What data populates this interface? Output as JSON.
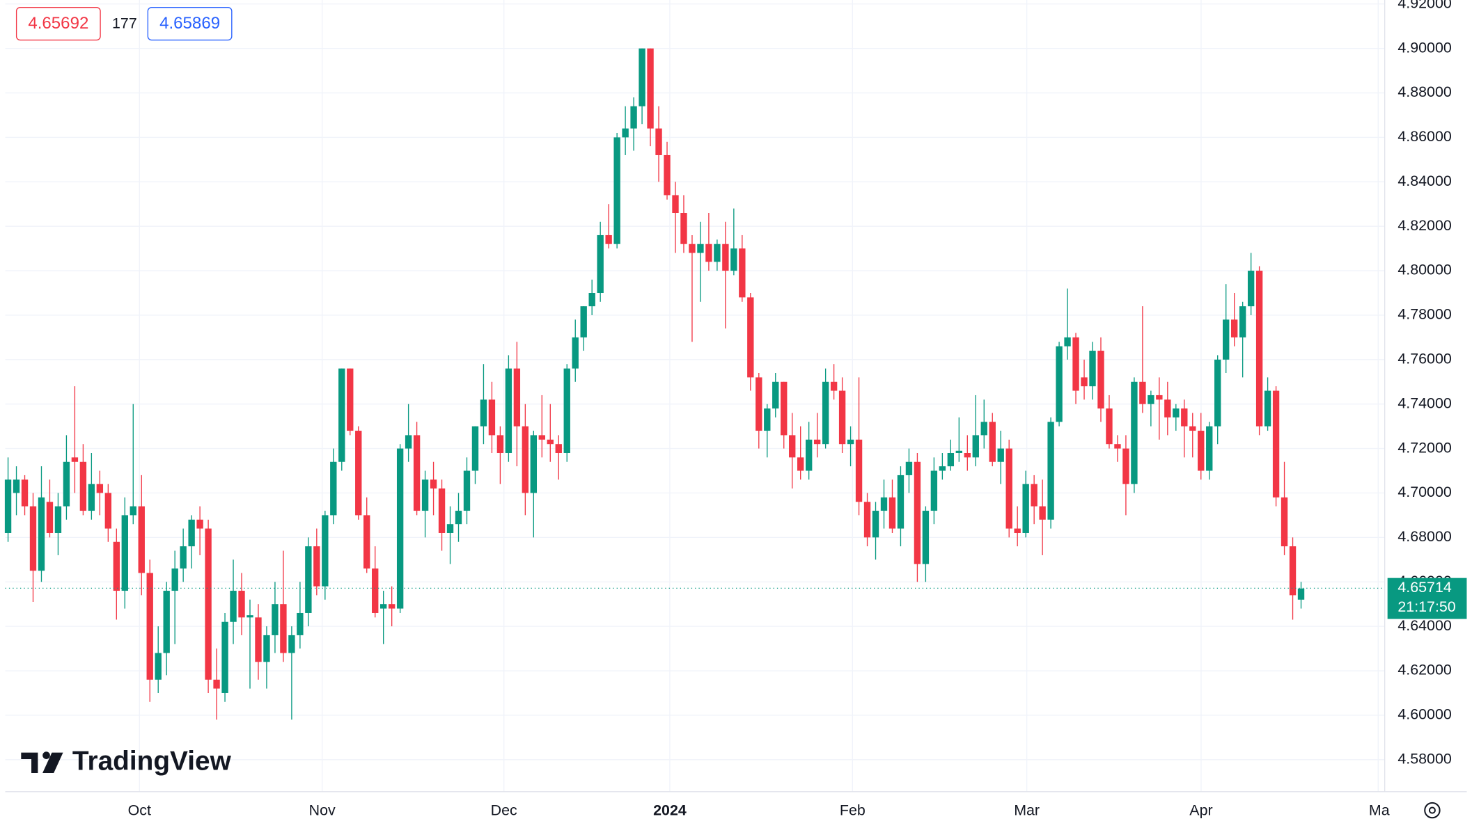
{
  "chart_data": {
    "type": "candlestick",
    "bid": "4.65692",
    "spread": "177",
    "ask": "4.65869",
    "last_price": 4.65714,
    "last_price_label": "4.65714",
    "countdown": "21:17:50",
    "watermark": "TradingView",
    "up_color": "#089981",
    "down_color": "#f23645",
    "grid": true,
    "ylim": [
      4.5656,
      4.9218
    ],
    "yticks": [
      {
        "value": 4.58,
        "label": "4.58000"
      },
      {
        "value": 4.6,
        "label": "4.60000"
      },
      {
        "value": 4.62,
        "label": "4.62000"
      },
      {
        "value": 4.64,
        "label": "4.64000"
      },
      {
        "value": 4.66,
        "label": "4.66000"
      },
      {
        "value": 4.68,
        "label": "4.68000"
      },
      {
        "value": 4.7,
        "label": "4.70000"
      },
      {
        "value": 4.72,
        "label": "4.72000"
      },
      {
        "value": 4.74,
        "label": "4.74000"
      },
      {
        "value": 4.76,
        "label": "4.76000"
      },
      {
        "value": 4.78,
        "label": "4.78000"
      },
      {
        "value": 4.8,
        "label": "4.80000"
      },
      {
        "value": 4.82,
        "label": "4.82000"
      },
      {
        "value": 4.84,
        "label": "4.84000"
      },
      {
        "value": 4.86,
        "label": "4.86000"
      },
      {
        "value": 4.88,
        "label": "4.88000"
      },
      {
        "value": 4.9,
        "label": "4.90000"
      },
      {
        "value": 4.92,
        "label": "4.92000"
      }
    ],
    "x_labels": [
      "Oct",
      "Nov",
      "Dec",
      "2024",
      "Feb",
      "Mar",
      "Apr",
      "Ma"
    ],
    "ohlc": [
      [
        4.682,
        4.716,
        4.678,
        4.706
      ],
      [
        4.7,
        4.712,
        4.69,
        4.706
      ],
      [
        4.706,
        4.708,
        4.69,
        4.694
      ],
      [
        4.694,
        4.7,
        4.651,
        4.665
      ],
      [
        4.665,
        4.712,
        4.66,
        4.698
      ],
      [
        4.696,
        4.706,
        4.68,
        4.682
      ],
      [
        4.682,
        4.7,
        4.672,
        4.694
      ],
      [
        4.694,
        4.726,
        4.688,
        4.714
      ],
      [
        4.716,
        4.748,
        4.7,
        4.714
      ],
      [
        4.714,
        4.722,
        4.69,
        4.692
      ],
      [
        4.692,
        4.718,
        4.688,
        4.704
      ],
      [
        4.704,
        4.71,
        4.69,
        4.7
      ],
      [
        4.7,
        4.704,
        4.678,
        4.684
      ],
      [
        4.678,
        4.684,
        4.643,
        4.656
      ],
      [
        4.656,
        4.698,
        4.648,
        4.69
      ],
      [
        4.69,
        4.74,
        4.686,
        4.694
      ],
      [
        4.694,
        4.708,
        4.654,
        4.664
      ],
      [
        4.664,
        4.67,
        4.606,
        4.616
      ],
      [
        4.616,
        4.64,
        4.61,
        4.628
      ],
      [
        4.628,
        4.66,
        4.618,
        4.656
      ],
      [
        4.656,
        4.674,
        4.632,
        4.666
      ],
      [
        4.666,
        4.684,
        4.66,
        4.676
      ],
      [
        4.676,
        4.69,
        4.666,
        4.688
      ],
      [
        4.688,
        4.694,
        4.672,
        4.684
      ],
      [
        4.684,
        4.688,
        4.61,
        4.616
      ],
      [
        4.616,
        4.63,
        4.598,
        4.612
      ],
      [
        4.61,
        4.646,
        4.606,
        4.642
      ],
      [
        4.642,
        4.67,
        4.632,
        4.656
      ],
      [
        4.656,
        4.664,
        4.636,
        4.644
      ],
      [
        4.644,
        4.652,
        4.612,
        4.645
      ],
      [
        4.644,
        4.65,
        4.616,
        4.624
      ],
      [
        4.624,
        4.64,
        4.612,
        4.636
      ],
      [
        4.636,
        4.66,
        4.628,
        4.65
      ],
      [
        4.65,
        4.674,
        4.624,
        4.628
      ],
      [
        4.628,
        4.64,
        4.598,
        4.636
      ],
      [
        4.636,
        4.66,
        4.63,
        4.646
      ],
      [
        4.646,
        4.68,
        4.64,
        4.676
      ],
      [
        4.676,
        4.684,
        4.654,
        4.658
      ],
      [
        4.658,
        4.692,
        4.652,
        4.69
      ],
      [
        4.69,
        4.72,
        4.686,
        4.714
      ],
      [
        4.714,
        4.756,
        4.71,
        4.756
      ],
      [
        4.756,
        4.756,
        4.726,
        4.728
      ],
      [
        4.728,
        4.73,
        4.688,
        4.69
      ],
      [
        4.69,
        4.698,
        4.664,
        4.666
      ],
      [
        4.666,
        4.676,
        4.644,
        4.646
      ],
      [
        4.648,
        4.656,
        4.632,
        4.65
      ],
      [
        4.65,
        4.658,
        4.64,
        4.648
      ],
      [
        4.648,
        4.722,
        4.646,
        4.72
      ],
      [
        4.72,
        4.74,
        4.714,
        4.726
      ],
      [
        4.726,
        4.732,
        4.69,
        4.692
      ],
      [
        4.692,
        4.71,
        4.68,
        4.706
      ],
      [
        4.706,
        4.714,
        4.69,
        4.702
      ],
      [
        4.702,
        4.706,
        4.674,
        4.682
      ],
      [
        4.682,
        4.694,
        4.668,
        4.686
      ],
      [
        4.686,
        4.7,
        4.678,
        4.692
      ],
      [
        4.692,
        4.716,
        4.686,
        4.71
      ],
      [
        4.71,
        4.73,
        4.704,
        4.73
      ],
      [
        4.73,
        4.758,
        4.722,
        4.742
      ],
      [
        4.742,
        4.75,
        4.718,
        4.726
      ],
      [
        4.726,
        4.73,
        4.704,
        4.718
      ],
      [
        4.718,
        4.762,
        4.714,
        4.756
      ],
      [
        4.756,
        4.768,
        4.712,
        4.73
      ],
      [
        4.73,
        4.74,
        4.69,
        4.7
      ],
      [
        4.7,
        4.728,
        4.68,
        4.726
      ],
      [
        4.726,
        4.744,
        4.716,
        4.724
      ],
      [
        4.724,
        4.74,
        4.714,
        4.722
      ],
      [
        4.722,
        4.726,
        4.706,
        4.718
      ],
      [
        4.718,
        4.758,
        4.714,
        4.756
      ],
      [
        4.756,
        4.778,
        4.75,
        4.77
      ],
      [
        4.77,
        4.784,
        4.764,
        4.784
      ],
      [
        4.784,
        4.796,
        4.78,
        4.79
      ],
      [
        4.79,
        4.822,
        4.786,
        4.816
      ],
      [
        4.816,
        4.83,
        4.81,
        4.812
      ],
      [
        4.812,
        4.862,
        4.81,
        4.86
      ],
      [
        4.86,
        4.874,
        4.852,
        4.864
      ],
      [
        4.864,
        4.878,
        4.854,
        4.874
      ],
      [
        4.874,
        4.9,
        4.866,
        4.9
      ],
      [
        4.9,
        4.9,
        4.856,
        4.864
      ],
      [
        4.864,
        4.874,
        4.84,
        4.852
      ],
      [
        4.852,
        4.858,
        4.832,
        4.834
      ],
      [
        4.834,
        4.84,
        4.808,
        4.826
      ],
      [
        4.826,
        4.834,
        4.808,
        4.812
      ],
      [
        4.812,
        4.816,
        4.768,
        4.808
      ],
      [
        4.808,
        4.822,
        4.786,
        4.812
      ],
      [
        4.812,
        4.826,
        4.8,
        4.804
      ],
      [
        4.804,
        4.814,
        4.8,
        4.812
      ],
      [
        4.812,
        4.822,
        4.774,
        4.8
      ],
      [
        4.8,
        4.828,
        4.798,
        4.81
      ],
      [
        4.81,
        4.816,
        4.786,
        4.788
      ],
      [
        4.788,
        4.79,
        4.746,
        4.752
      ],
      [
        4.752,
        4.754,
        4.72,
        4.728
      ],
      [
        4.728,
        4.74,
        4.716,
        4.738
      ],
      [
        4.738,
        4.754,
        4.734,
        4.75
      ],
      [
        4.75,
        4.75,
        4.72,
        4.726
      ],
      [
        4.726,
        4.736,
        4.702,
        4.716
      ],
      [
        4.716,
        4.73,
        4.706,
        4.71
      ],
      [
        4.71,
        4.732,
        4.706,
        4.724
      ],
      [
        4.724,
        4.736,
        4.716,
        4.722
      ],
      [
        4.722,
        4.756,
        4.72,
        4.75
      ],
      [
        4.75,
        4.758,
        4.742,
        4.746
      ],
      [
        4.746,
        4.752,
        4.718,
        4.722
      ],
      [
        4.722,
        4.73,
        4.712,
        4.724
      ],
      [
        4.724,
        4.752,
        4.69,
        4.696
      ],
      [
        4.696,
        4.7,
        4.676,
        4.68
      ],
      [
        4.68,
        4.696,
        4.67,
        4.692
      ],
      [
        4.692,
        4.706,
        4.684,
        4.698
      ],
      [
        4.698,
        4.706,
        4.682,
        4.684
      ],
      [
        4.684,
        4.712,
        4.676,
        4.708
      ],
      [
        4.708,
        4.72,
        4.7,
        4.714
      ],
      [
        4.714,
        4.718,
        4.66,
        4.668
      ],
      [
        4.668,
        4.694,
        4.66,
        4.692
      ],
      [
        4.692,
        4.716,
        4.686,
        4.71
      ],
      [
        4.71,
        4.718,
        4.706,
        4.712
      ],
      [
        4.712,
        4.724,
        4.71,
        4.718
      ],
      [
        4.718,
        4.734,
        4.714,
        4.719
      ],
      [
        4.718,
        4.726,
        4.71,
        4.716
      ],
      [
        4.716,
        4.744,
        4.712,
        4.726
      ],
      [
        4.726,
        4.742,
        4.72,
        4.732
      ],
      [
        4.732,
        4.736,
        4.712,
        4.714
      ],
      [
        4.714,
        4.728,
        4.704,
        4.72
      ],
      [
        4.72,
        4.724,
        4.68,
        4.684
      ],
      [
        4.684,
        4.694,
        4.676,
        4.682
      ],
      [
        4.682,
        4.71,
        4.68,
        4.704
      ],
      [
        4.704,
        4.708,
        4.686,
        4.694
      ],
      [
        4.694,
        4.706,
        4.672,
        4.688
      ],
      [
        4.688,
        4.734,
        4.684,
        4.732
      ],
      [
        4.732,
        4.768,
        4.73,
        4.766
      ],
      [
        4.766,
        4.792,
        4.76,
        4.77
      ],
      [
        4.77,
        4.772,
        4.74,
        4.746
      ],
      [
        4.752,
        4.76,
        4.742,
        4.748
      ],
      [
        4.748,
        4.768,
        4.742,
        4.764
      ],
      [
        4.764,
        4.77,
        4.732,
        4.738
      ],
      [
        4.738,
        4.744,
        4.72,
        4.722
      ],
      [
        4.722,
        4.726,
        4.714,
        4.72
      ],
      [
        4.72,
        4.726,
        4.69,
        4.704
      ],
      [
        4.704,
        4.752,
        4.7,
        4.75
      ],
      [
        4.75,
        4.784,
        4.736,
        4.74
      ],
      [
        4.74,
        4.746,
        4.73,
        4.744
      ],
      [
        4.744,
        4.752,
        4.724,
        4.742
      ],
      [
        4.742,
        4.75,
        4.726,
        4.734
      ],
      [
        4.734,
        4.74,
        4.728,
        4.738
      ],
      [
        4.738,
        4.742,
        4.716,
        4.73
      ],
      [
        4.73,
        4.736,
        4.716,
        4.728
      ],
      [
        4.728,
        4.736,
        4.706,
        4.71
      ],
      [
        4.71,
        4.732,
        4.706,
        4.73
      ],
      [
        4.73,
        4.762,
        4.722,
        4.76
      ],
      [
        4.76,
        4.794,
        4.754,
        4.778
      ],
      [
        4.778,
        4.79,
        4.766,
        4.77
      ],
      [
        4.77,
        4.786,
        4.752,
        4.784
      ],
      [
        4.784,
        4.808,
        4.78,
        4.8
      ],
      [
        4.8,
        4.802,
        4.726,
        4.73
      ],
      [
        4.73,
        4.752,
        4.728,
        4.746
      ],
      [
        4.746,
        4.748,
        4.694,
        4.698
      ],
      [
        4.698,
        4.714,
        4.672,
        4.676
      ],
      [
        4.676,
        4.68,
        4.643,
        4.654
      ],
      [
        4.652,
        4.66,
        4.648,
        4.657
      ]
    ]
  }
}
